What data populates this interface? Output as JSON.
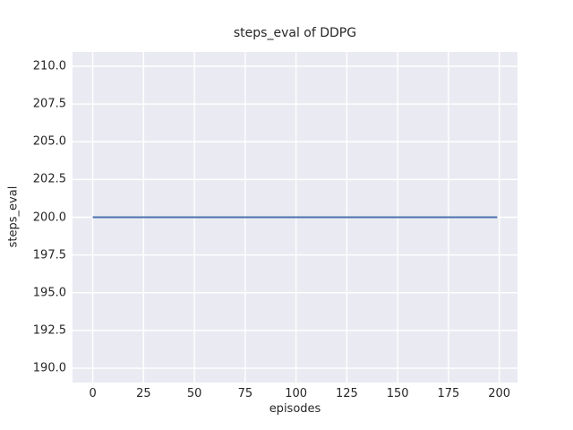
{
  "title": "steps_eval of DDPG",
  "chart_data": {
    "type": "line",
    "title": "steps_eval of DDPG",
    "xlabel": "episodes",
    "ylabel": "steps_eval",
    "xlim": [
      -9.95,
      208.95
    ],
    "ylim": [
      189.05,
      210.95
    ],
    "x_ticks": [
      0,
      25,
      50,
      75,
      100,
      125,
      150,
      175,
      200
    ],
    "x_tick_labels": [
      "0",
      "25",
      "50",
      "75",
      "100",
      "125",
      "150",
      "175",
      "200"
    ],
    "y_ticks": [
      190.0,
      192.5,
      195.0,
      197.5,
      200.0,
      202.5,
      205.0,
      207.5,
      210.0
    ],
    "y_tick_labels": [
      "190.0",
      "192.5",
      "195.0",
      "197.5",
      "200.0",
      "202.5",
      "205.0",
      "207.5",
      "210.0"
    ],
    "grid": true,
    "legend": false,
    "series": [
      {
        "name": "steps_eval",
        "color": "#4c72b0",
        "x": [
          0,
          199
        ],
        "values": [
          200,
          200
        ]
      }
    ],
    "style": {
      "figure_bg": "#ffffff",
      "plot_bg": "#eaeaf2",
      "grid_color": "#ffffff",
      "text_color": "#262626"
    }
  }
}
